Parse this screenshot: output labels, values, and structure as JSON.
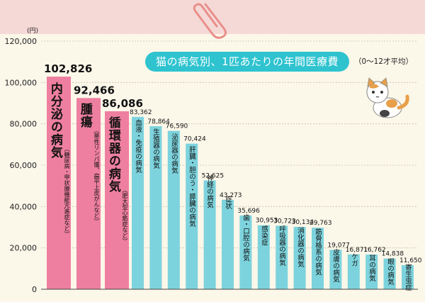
{
  "chart_data": {
    "type": "bar",
    "title": "猫の病気別、1匹あたりの年間医療費",
    "subtitle": "（0〜12才平均）",
    "unit_label": "(円)",
    "ylim": [
      0,
      120000
    ],
    "yticks": [
      "0",
      "20,000",
      "40,000",
      "60,000",
      "80,000",
      "100,000",
      "120,000"
    ],
    "grid": true,
    "categories": [
      "内分泌の病気",
      "腫瘍",
      "循環器の病気",
      "血液・免疫の病気",
      "生殖器の病気",
      "泌尿器の病気",
      "肝臓・胆のう・膵臓の病気",
      "神経の病気",
      "症状",
      "歯・口腔の病気",
      "感染症",
      "呼吸器の病気",
      "消化器の病気",
      "筋骨格系の病気",
      "皮膚の病気",
      "ケガ",
      "耳の病気",
      "眼の病気",
      "寄生虫症"
    ],
    "notes": [
      "（糖尿病・甲状腺機能亢進症など）",
      "（悪性リンパ腫、扁平上皮がんなど）",
      "（肥大型心筋症など）"
    ],
    "values": [
      102826,
      92466,
      86086,
      83362,
      78864,
      76590,
      70424,
      52625,
      43273,
      35696,
      30953,
      30723,
      30134,
      29763,
      19077,
      16871,
      16762,
      14838,
      11650
    ],
    "value_labels": [
      "102,826",
      "92,466",
      "86,086",
      "83,362",
      "78,864",
      "76,590",
      "70,424",
      "52,625",
      "43,273",
      "35,696",
      "30,953",
      "30,723",
      "30,134",
      "29,763",
      "19,077",
      "16,871",
      "16,762",
      "14,838",
      "11,650"
    ],
    "highlight_count": 3,
    "colors": {
      "highlight": "#ee7fa1",
      "bar": "#7dd3dd",
      "title_bg": "#2ec3cf",
      "grid": "#c9c3a8",
      "background": "#fbf7e9",
      "top_band": "#f5d9d7"
    }
  },
  "decor": {
    "icons": [
      "paperclip-icon",
      "cat-illustration"
    ]
  }
}
